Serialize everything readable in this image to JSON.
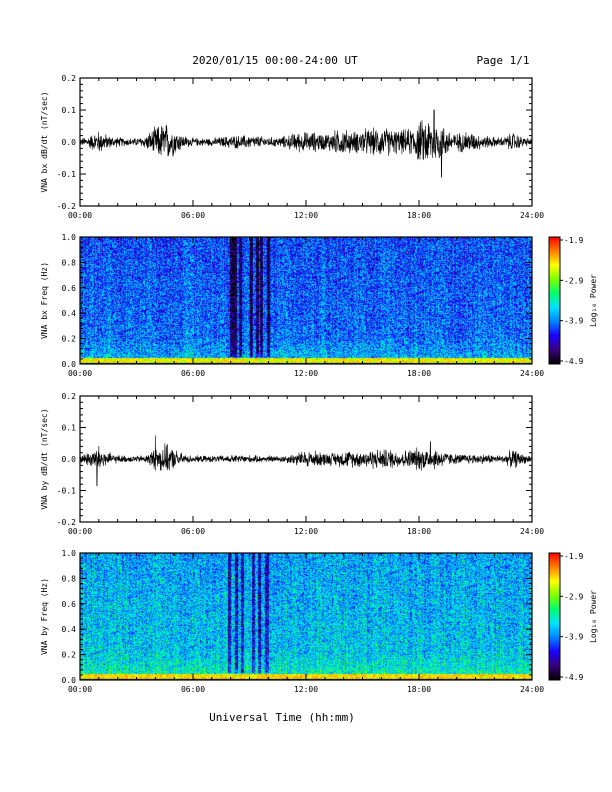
{
  "header": {
    "title": "2020/01/15  00:00-24:00 UT",
    "page": "Page 1/1"
  },
  "footer": {
    "xlabel": "Universal Time (hh:mm)"
  },
  "colors": {
    "trace": "#000000",
    "colormap": [
      "#000000",
      "#3a007a",
      "#1b00ff",
      "#0082ff",
      "#00e1ff",
      "#00ff6e",
      "#7dff00",
      "#ffff00",
      "#ff7f00",
      "#ff0000"
    ]
  },
  "chart_data": [
    {
      "type": "line",
      "ylabel": "VNA bx dB/dt (nT/sec)",
      "xlim": [
        "00:00",
        "24:00"
      ],
      "xticks": [
        "00:00",
        "06:00",
        "12:00",
        "18:00",
        "24:00"
      ],
      "ylim": [
        -0.2,
        0.2
      ],
      "yticks": [
        "-0.2",
        "-0.1",
        "0.0",
        "0.1",
        "0.2"
      ],
      "grid": false,
      "series": [
        {
          "x_hours": [
            0,
            0.5,
            1,
            1.5,
            2,
            2.5,
            3,
            3.5,
            4,
            4.5,
            5,
            5.5,
            6,
            6.5,
            7,
            7.5,
            8,
            8.5,
            9,
            9.5,
            10,
            10.5,
            11,
            11.5,
            12,
            12.5,
            13,
            13.5,
            14,
            14.5,
            15,
            15.5,
            16,
            16.5,
            17,
            17.5,
            18,
            18.5,
            19,
            19.5,
            20,
            20.5,
            21,
            21.5,
            22,
            22.5,
            23,
            23.5,
            24
          ],
          "amplitude": [
            0.01,
            0.02,
            0.035,
            0.02,
            0.015,
            0.012,
            0.012,
            0.02,
            0.045,
            0.06,
            0.04,
            0.02,
            0.012,
            0.012,
            0.012,
            0.015,
            0.02,
            0.02,
            0.02,
            0.018,
            0.015,
            0.015,
            0.02,
            0.03,
            0.03,
            0.03,
            0.025,
            0.035,
            0.04,
            0.03,
            0.04,
            0.04,
            0.045,
            0.04,
            0.035,
            0.04,
            0.06,
            0.075,
            0.06,
            0.04,
            0.025,
            0.035,
            0.025,
            0.02,
            0.015,
            0.015,
            0.03,
            0.015,
            0.01
          ],
          "peaks": [
            {
              "x_hours": 18.8,
              "value": 0.1
            },
            {
              "x_hours": 19.2,
              "value": -0.11
            }
          ]
        }
      ]
    },
    {
      "type": "heatmap",
      "ylabel": "VNA bx Freq (Hz)",
      "xlim": [
        "00:00",
        "24:00"
      ],
      "xticks": [
        "00:00",
        "06:00",
        "12:00",
        "18:00",
        "24:00"
      ],
      "ylim": [
        0.0,
        1.0
      ],
      "yticks": [
        "0.0",
        "0.2",
        "0.4",
        "0.6",
        "0.8",
        "1.0"
      ],
      "colorbar": {
        "label": "Log₁₀ Power",
        "ticks": [
          "-1.9",
          "-2.9",
          "-3.9",
          "-4.9"
        ],
        "range": [
          -4.9,
          -1.9
        ]
      },
      "background_level": -3.9,
      "low_freq_band": {
        "freq_max": 0.05,
        "level": -2.6
      },
      "quiet_stripes_hours": [
        8.0,
        8.2,
        8.5,
        9.1,
        9.4,
        9.6,
        10.0
      ]
    },
    {
      "type": "line",
      "ylabel": "VNA by dB/dt (nT/sec)",
      "xlim": [
        "00:00",
        "24:00"
      ],
      "xticks": [
        "00:00",
        "06:00",
        "12:00",
        "18:00",
        "24:00"
      ],
      "ylim": [
        -0.2,
        0.2
      ],
      "yticks": [
        "-0.2",
        "-0.1",
        "0.0",
        "0.1",
        "0.2"
      ],
      "grid": false,
      "series": [
        {
          "x_hours": [
            0,
            0.5,
            1,
            1.5,
            2,
            2.5,
            3,
            3.5,
            4,
            4.5,
            5,
            5.5,
            6,
            6.5,
            7,
            7.5,
            8,
            8.5,
            9,
            9.5,
            10,
            10.5,
            11,
            11.5,
            12,
            12.5,
            13,
            13.5,
            14,
            14.5,
            15,
            15.5,
            16,
            16.5,
            17,
            17.5,
            18,
            18.5,
            19,
            19.5,
            20,
            20.5,
            21,
            21.5,
            22,
            22.5,
            23,
            23.5,
            24
          ],
          "amplitude": [
            0.01,
            0.025,
            0.04,
            0.02,
            0.012,
            0.01,
            0.01,
            0.012,
            0.035,
            0.045,
            0.03,
            0.015,
            0.01,
            0.01,
            0.01,
            0.01,
            0.012,
            0.012,
            0.012,
            0.01,
            0.01,
            0.01,
            0.012,
            0.02,
            0.025,
            0.025,
            0.02,
            0.02,
            0.025,
            0.025,
            0.025,
            0.03,
            0.03,
            0.03,
            0.025,
            0.03,
            0.035,
            0.035,
            0.03,
            0.02,
            0.015,
            0.015,
            0.015,
            0.015,
            0.012,
            0.012,
            0.03,
            0.015,
            0.01
          ],
          "peaks": [
            {
              "x_hours": 0.9,
              "value": -0.085
            },
            {
              "x_hours": 4.0,
              "value": 0.075
            },
            {
              "x_hours": 18.6,
              "value": 0.055
            }
          ]
        }
      ]
    },
    {
      "type": "heatmap",
      "ylabel": "VNA by Freq (Hz)",
      "xlim": [
        "00:00",
        "24:00"
      ],
      "xticks": [
        "00:00",
        "06:00",
        "12:00",
        "18:00",
        "24:00"
      ],
      "ylim": [
        0.0,
        1.0
      ],
      "yticks": [
        "0.0",
        "0.2",
        "0.4",
        "0.6",
        "0.8",
        "1.0"
      ],
      "colorbar": {
        "label": "Log₁₀ Power",
        "ticks": [
          "-1.9",
          "-2.9",
          "-3.9",
          "-4.9"
        ],
        "range": [
          -4.9,
          -1.9
        ]
      },
      "background_level": -3.6,
      "low_freq_band": {
        "freq_max": 0.05,
        "level": -2.5
      },
      "quiet_stripes_hours": [
        7.9,
        8.3,
        8.6,
        9.2,
        9.5,
        9.9
      ]
    }
  ]
}
